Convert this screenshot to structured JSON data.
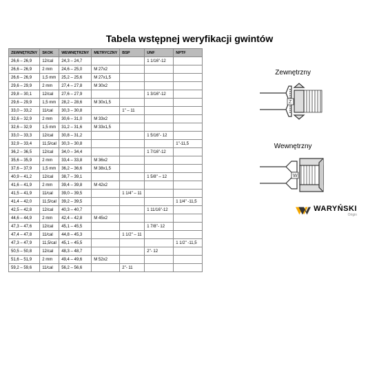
{
  "title": "Tabela wstępnej weryfikacji gwintów",
  "columns": [
    "ZEWNĘTRZNY",
    "SKOK",
    "WEWNĘTRZNY",
    "METRYCZNY",
    "BSP",
    "UNF",
    "NPTF"
  ],
  "rows": [
    [
      "26,6 – 26,9",
      "12/cal",
      "24,3 – 24,7",
      "",
      "",
      "1 1/16\"-12",
      ""
    ],
    [
      "26,6 – 26,9",
      "2 mm",
      "24,6 – 25,0",
      "M 27x2",
      "",
      "",
      ""
    ],
    [
      "26,6 – 26,9",
      "1,5 mm",
      "25,2 – 25,6",
      "M 27x1,5",
      "",
      "",
      ""
    ],
    [
      "29,6 – 29,9",
      "2 mm",
      "27,4 – 27,8",
      "M 30x2",
      "",
      "",
      ""
    ],
    [
      "29,8 – 30,1",
      "12/cal",
      "27,6 – 27,9",
      "",
      "",
      "1 3/16\"-12",
      ""
    ],
    [
      "29,6 – 29,9",
      "1,5 mm",
      "28,2 – 28,6",
      "M 30x1,5",
      "",
      "",
      ""
    ],
    [
      "33,0 – 33,2",
      "11/cal",
      "30,3 – 30,8",
      "",
      "1\" – 11",
      "",
      ""
    ],
    [
      "32,6 – 32,9",
      "2 mm",
      "30,6 – 31,0",
      "M 33x2",
      "",
      "",
      ""
    ],
    [
      "32,6 – 32,9",
      "1,5 mm",
      "31,2 – 31,6",
      "M 33x1,5",
      "",
      "",
      ""
    ],
    [
      "33,0 – 33,3",
      "12/cal",
      "30,8 – 31,2",
      "",
      "",
      "1 5/16\"- 12",
      ""
    ],
    [
      "32,9 – 33,4",
      "11,5/cal",
      "30,3 – 30,8",
      "",
      "",
      "",
      "1\"-11,5"
    ],
    [
      "36,2 – 36,5",
      "12/cal",
      "34,0 – 34,4",
      "",
      "",
      "1 7/16\"-12",
      ""
    ],
    [
      "35,6 – 35,9",
      "2 mm",
      "33,4 – 33,8",
      "M 36x2",
      "",
      "",
      ""
    ],
    [
      "37,6 – 37,9",
      "1,5 mm",
      "36,2 – 36,6",
      "M 38x1,5",
      "",
      "",
      ""
    ],
    [
      "40,9 – 41,2",
      "12/cal",
      "38,7 – 39,1",
      "",
      "",
      "1 5/8\" – 12",
      ""
    ],
    [
      "41,6 – 41,9",
      "2 mm",
      "39,4 – 39,8",
      "M 42x2",
      "",
      "",
      ""
    ],
    [
      "41,5 – 41,9",
      "11/cal",
      "39,0 – 39,5",
      "",
      "1 1/4\" – 11",
      "",
      ""
    ],
    [
      "41,4 – 42,0",
      "11,5/cal",
      "39,2 – 39,5",
      "",
      "",
      "",
      "1 1/4\" -11,5"
    ],
    [
      "42,5 – 42,8",
      "12/cal",
      "40,3 – 40,7",
      "",
      "",
      "1 11/16\"-12",
      ""
    ],
    [
      "44,6 – 44,9",
      "2 mm",
      "42,4 – 42,8",
      "M 45x2",
      "",
      "",
      ""
    ],
    [
      "47,3 – 47,6",
      "12/cal",
      "45,1 – 45,5",
      "",
      "",
      "1 7/8\"- 12",
      ""
    ],
    [
      "47,4 – 47,8",
      "11/cal",
      "44,8 – 45,3",
      "",
      "1 1/2\" – 11",
      "",
      ""
    ],
    [
      "47,3 – 47,9",
      "11,5/cal",
      "45,1 – 45,5",
      "",
      "",
      "",
      "1 1/2\" -11,5"
    ],
    [
      "50,5 – 50,8",
      "12/cal",
      "48,3 – 48,7",
      "",
      "",
      "2\"- 12",
      ""
    ],
    [
      "51,6 – 51,9",
      "2 mm",
      "49,4 – 49,6",
      "M 52x2",
      "",
      "",
      ""
    ],
    [
      "59,2 – 59,6",
      "11/cal",
      "56,2 – 56,6",
      "",
      "2\"- 11",
      "",
      ""
    ]
  ],
  "label_ext": "Zewnętrzny",
  "label_int": "Wewnętrzny",
  "logo_text": "WARYŃSKI",
  "logo_sub": "Origin",
  "logo_color": "#f6a800",
  "diagram_stroke": "#333"
}
